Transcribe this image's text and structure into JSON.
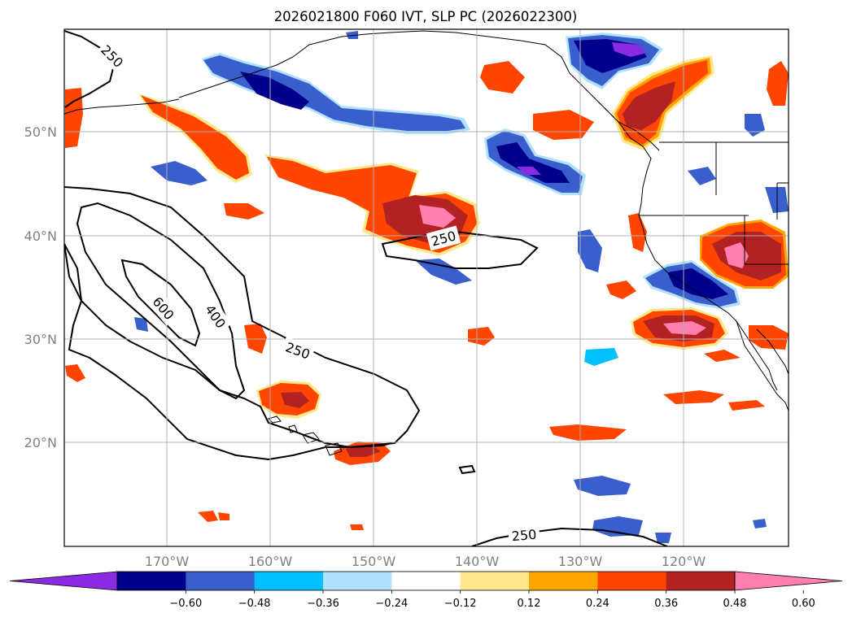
{
  "title": "2026021800 F060 IVT, SLP PC (2026022300)",
  "map": {
    "lat_labels": [
      "50°N",
      "40°N",
      "30°N",
      "20°N"
    ],
    "lon_labels": [
      "170°W",
      "160°W",
      "150°W",
      "140°W",
      "130°W",
      "120°W"
    ],
    "lat_range": [
      10,
      60
    ],
    "lon_range": [
      -180,
      -110
    ],
    "contour_labels": [
      "250",
      "250",
      "250",
      "250",
      "400",
      "600"
    ]
  },
  "colorbar": {
    "ticks": [
      "−0.60",
      "−0.48",
      "−0.36",
      "−0.24",
      "−0.12",
      "0.12",
      "0.24",
      "0.36",
      "0.48",
      "0.60"
    ],
    "colors": [
      "#8a2be2",
      "#00008b",
      "#3a5fcd",
      "#00bfff",
      "#b0e2ff",
      "#ffffff",
      "#ffe88c",
      "#ffa500",
      "#ff4500",
      "#b22222",
      "#ff7fae"
    ]
  },
  "colors": {
    "neg_light": "#b0e2ff",
    "neg_cyan": "#00bfff",
    "neg_blue": "#3a5fcd",
    "neg_navy": "#00008b",
    "neg_purple": "#8a2be2",
    "pos_yellow": "#ffe88c",
    "pos_orange": "#ffa500",
    "pos_redorange": "#ff4500",
    "pos_firebrick": "#b22222",
    "pos_pink": "#ff7fae"
  }
}
